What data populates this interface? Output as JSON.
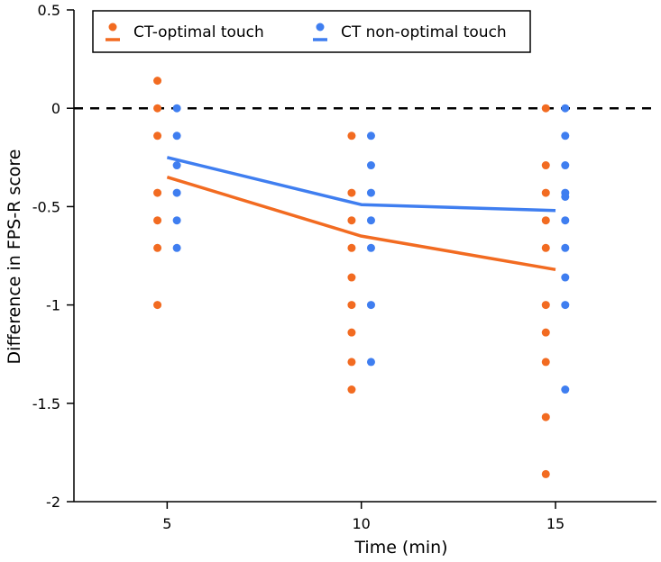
{
  "chart_data": {
    "type": "scatter",
    "title": "",
    "xlabel": "Time (min)",
    "ylabel": "Difference in FPS-R score",
    "xlim": [
      2.6,
      17.6
    ],
    "ylim": [
      -2,
      0.5
    ],
    "x_ticks": [
      5,
      10,
      15
    ],
    "x_tick_labels": [
      "5",
      "10",
      "15"
    ],
    "y_ticks": [
      -2,
      -1.5,
      -1,
      -0.5,
      0,
      0.5
    ],
    "y_tick_labels": [
      "-2",
      "-1.5",
      "-1",
      "-0.5",
      "0",
      "0.5"
    ],
    "reference_line": {
      "y": 0,
      "style": "dashed"
    },
    "legend_position": "top-left",
    "series": [
      {
        "name": "CT-optimal touch",
        "color": "#f26b21",
        "x_offset": -0.25,
        "points": [
          {
            "x": 5,
            "values": [
              0.14,
              0,
              -0.14,
              -0.43,
              -0.57,
              -0.71,
              -1
            ]
          },
          {
            "x": 10,
            "values": [
              -0.14,
              -0.43,
              -0.57,
              -0.71,
              -0.86,
              -1,
              -1.14,
              -1.29,
              -1.43
            ]
          },
          {
            "x": 15,
            "values": [
              0,
              -0.29,
              -0.43,
              -0.57,
              -0.71,
              -1,
              -1.14,
              -1.29,
              -1.57,
              -1.86
            ]
          }
        ],
        "means": [
          {
            "x": 5,
            "y": -0.35
          },
          {
            "x": 10,
            "y": -0.65
          },
          {
            "x": 15,
            "y": -0.82
          }
        ]
      },
      {
        "name": "CT non-optimal touch",
        "color": "#3f7ef0",
        "x_offset": 0.25,
        "points": [
          {
            "x": 5,
            "values": [
              0,
              -0.14,
              -0.29,
              -0.43,
              -0.57,
              -0.71
            ]
          },
          {
            "x": 10,
            "values": [
              -0.14,
              -0.29,
              -0.43,
              -0.57,
              -0.71,
              -1,
              -1.29
            ]
          },
          {
            "x": 15,
            "values": [
              0,
              -0.14,
              -0.29,
              -0.43,
              -0.45,
              -0.57,
              -0.71,
              -0.86,
              -1,
              -1.43
            ]
          }
        ],
        "means": [
          {
            "x": 5,
            "y": -0.25
          },
          {
            "x": 10,
            "y": -0.49
          },
          {
            "x": 15,
            "y": -0.52
          }
        ]
      }
    ]
  }
}
